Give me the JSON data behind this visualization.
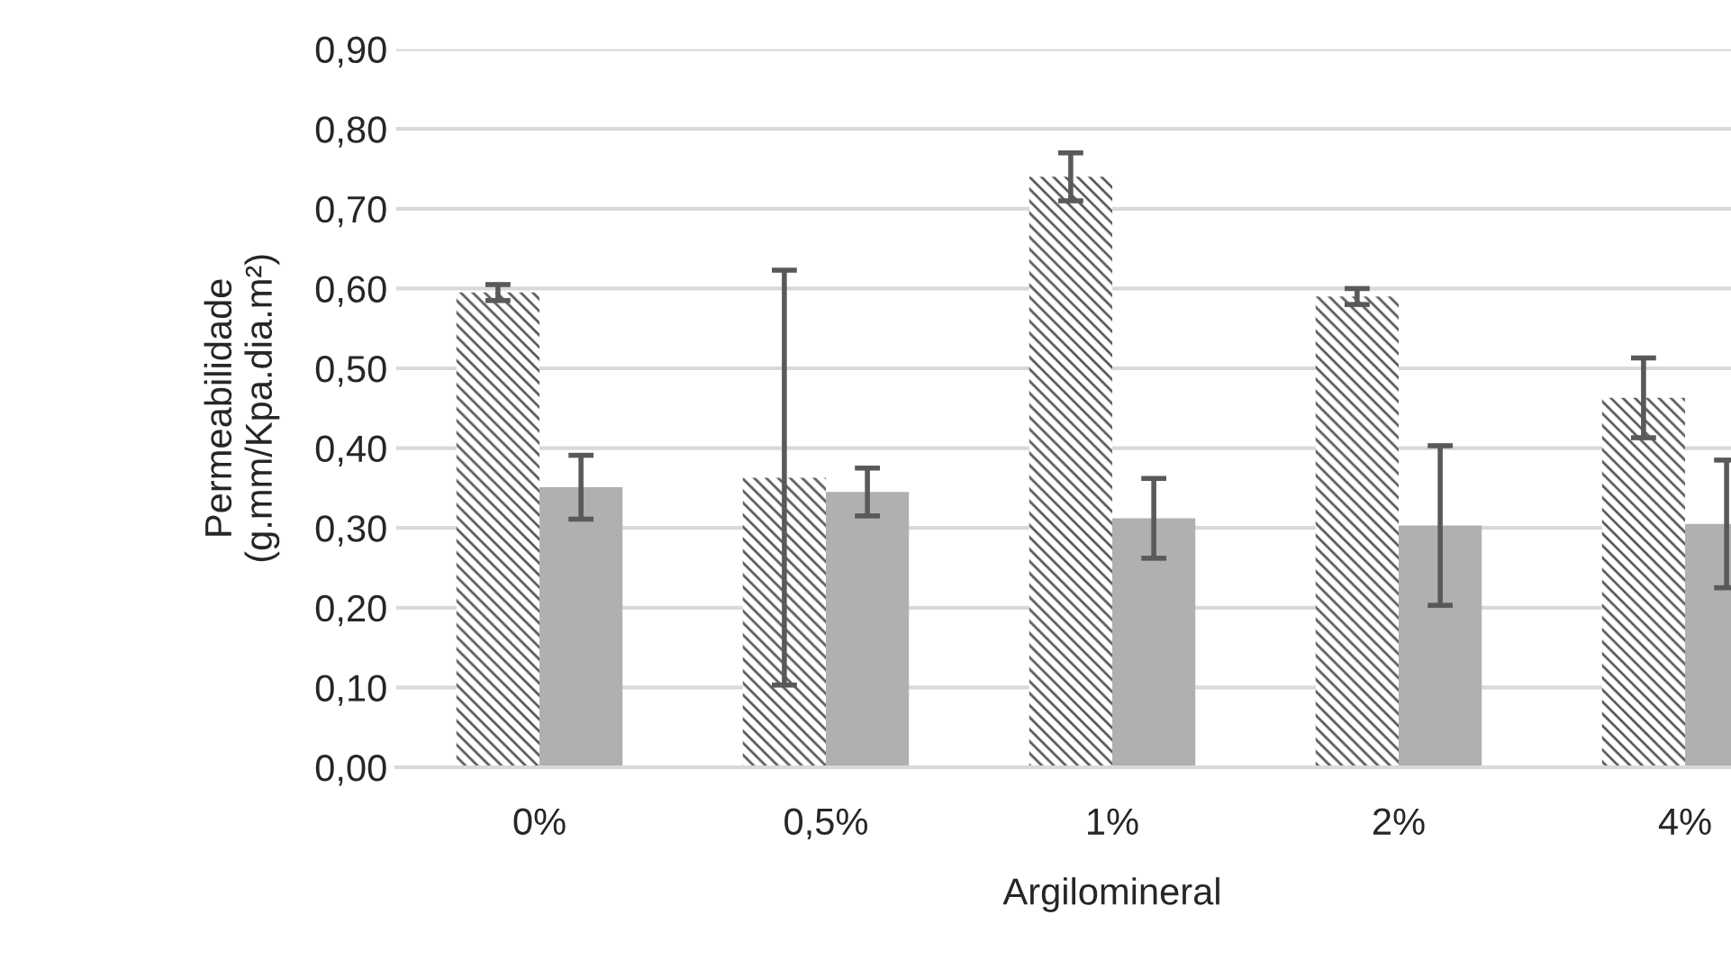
{
  "chart_data": {
    "type": "bar",
    "categories": [
      "0%",
      "0,5%",
      "1%",
      "2%",
      "4%"
    ],
    "series": [
      {
        "color": "#595959",
        "values": [
          0.595,
          0.363,
          0.74,
          0.59,
          0.463
        ],
        "errors": [
          0.01,
          0.26,
          0.03,
          0.01,
          0.05
        ]
      },
      {
        "color": "#b0b0b0",
        "values": [
          0.351,
          0.345,
          0.312,
          0.303,
          0.305
        ],
        "errors": [
          0.04,
          0.03,
          0.05,
          0.1,
          0.08
        ]
      }
    ],
    "xlabel": "Argilomineral",
    "ylabel": "Permeabilidade\n(g.mm/Kpa.dia.m²)",
    "ylim": [
      0,
      0.9
    ],
    "yticks": [
      {
        "value": 0,
        "label": "0,00"
      },
      {
        "value": 0.1,
        "label": "0,10"
      },
      {
        "value": 0.2,
        "label": "0,20"
      },
      {
        "value": 0.3,
        "label": "0,30"
      },
      {
        "value": 0.4,
        "label": "0,40"
      },
      {
        "value": 0.5,
        "label": "0,50"
      },
      {
        "value": 0.6,
        "label": "0,60"
      },
      {
        "value": 0.7,
        "label": "0,70"
      },
      {
        "value": 0.8,
        "label": "0,80"
      },
      {
        "value": 0.9,
        "label": "0,90"
      }
    ],
    "grid": "y"
  }
}
